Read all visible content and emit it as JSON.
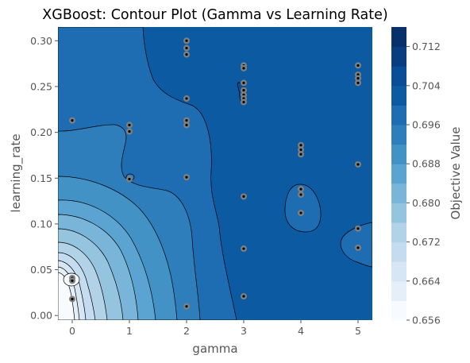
{
  "chart_data": {
    "type": "contour",
    "title": "XGBoost: Contour Plot (Gamma vs Learning Rate)",
    "xlabel": "gamma",
    "ylabel": "learning_rate",
    "colorbar_label": "Objective Value",
    "xlim": [
      -0.25,
      5.25
    ],
    "ylim": [
      -0.005,
      0.315
    ],
    "x_ticks": [
      0,
      1,
      2,
      3,
      4,
      5
    ],
    "x_tick_labels": [
      "0",
      "1",
      "2",
      "3",
      "4",
      "5"
    ],
    "y_ticks": [
      0.0,
      0.05,
      0.1,
      0.15,
      0.2,
      0.25,
      0.3
    ],
    "y_tick_labels": [
      "0.00",
      "0.05",
      "0.10",
      "0.15",
      "0.20",
      "0.25",
      "0.30"
    ],
    "colorbar_range": [
      0.656,
      0.716
    ],
    "colorbar_ticks": [
      0.656,
      0.664,
      0.672,
      0.68,
      0.688,
      0.696,
      0.704,
      0.712
    ],
    "colorbar_tick_labels": [
      "0.656",
      "0.664",
      "0.672",
      "0.680",
      "0.688",
      "0.696",
      "0.704",
      "0.712"
    ],
    "colormap": "Blues",
    "levels": [
      0.656,
      0.66,
      0.664,
      0.668,
      0.672,
      0.676,
      0.68,
      0.684,
      0.688,
      0.692,
      0.696,
      0.7,
      0.704,
      0.708,
      0.712,
      0.716
    ],
    "level_colors": [
      "#f7fbff",
      "#e5eff9",
      "#d7e6f5",
      "#c5dbef",
      "#b1d2e7",
      "#95c4df",
      "#79b5d9",
      "#5ba3d0",
      "#4292c6",
      "#2f7ebc",
      "#1e6db2",
      "#0b5aa2",
      "#084d96",
      "#083e80",
      "#08306b"
    ],
    "points": [
      {
        "x": 0,
        "y": 0.213
      },
      {
        "x": 0,
        "y": 0.041
      },
      {
        "x": 0,
        "y": 0.038
      },
      {
        "x": 0,
        "y": 0.018
      },
      {
        "x": 1,
        "y": 0.208
      },
      {
        "x": 1,
        "y": 0.201
      },
      {
        "x": 1,
        "y": 0.149
      },
      {
        "x": 2,
        "y": 0.3
      },
      {
        "x": 2,
        "y": 0.292
      },
      {
        "x": 2,
        "y": 0.285
      },
      {
        "x": 2,
        "y": 0.237
      },
      {
        "x": 2,
        "y": 0.213
      },
      {
        "x": 2,
        "y": 0.208
      },
      {
        "x": 2,
        "y": 0.151
      },
      {
        "x": 2,
        "y": 0.01
      },
      {
        "x": 3,
        "y": 0.273
      },
      {
        "x": 3,
        "y": 0.27
      },
      {
        "x": 3,
        "y": 0.254
      },
      {
        "x": 3,
        "y": 0.246
      },
      {
        "x": 3,
        "y": 0.241
      },
      {
        "x": 3,
        "y": 0.237
      },
      {
        "x": 3,
        "y": 0.233
      },
      {
        "x": 3,
        "y": 0.13
      },
      {
        "x": 3,
        "y": 0.073
      },
      {
        "x": 3,
        "y": 0.021
      },
      {
        "x": 4,
        "y": 0.186
      },
      {
        "x": 4,
        "y": 0.181
      },
      {
        "x": 4,
        "y": 0.176
      },
      {
        "x": 4,
        "y": 0.138
      },
      {
        "x": 4,
        "y": 0.132
      },
      {
        "x": 4,
        "y": 0.112
      },
      {
        "x": 5,
        "y": 0.273
      },
      {
        "x": 5,
        "y": 0.263
      },
      {
        "x": 5,
        "y": 0.259
      },
      {
        "x": 5,
        "y": 0.254
      },
      {
        "x": 5,
        "y": 0.165
      },
      {
        "x": 5,
        "y": 0.095
      },
      {
        "x": 5,
        "y": 0.074
      }
    ]
  }
}
